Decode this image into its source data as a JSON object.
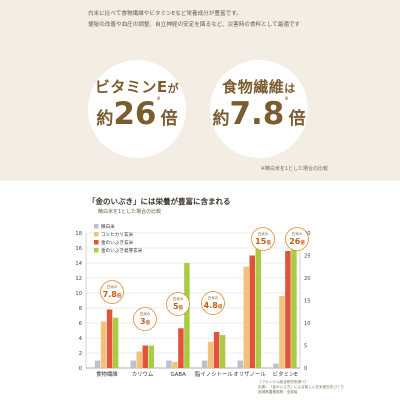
{
  "intro": {
    "line1": "白米に比べて食物繊維やビタミンEなど栄養成分が豊富です。",
    "line2": "便秘の改善や血圧の調整、自立神経の安定を図るなど、災害時の食料として最適です"
  },
  "highlights": [
    {
      "label_pre": "ビタミンE",
      "label_suf": "が",
      "prefix": "約",
      "value": "26",
      "suffix": "倍",
      "mark": "※"
    },
    {
      "label_pre": "食物繊維",
      "label_suf": "は",
      "prefix": "約",
      "value": "7.8",
      "suffix": "倍",
      "mark": "※"
    }
  ],
  "footnote": "※精白米を1とした場合の比較",
  "chart_title": "「金のいぶき」には栄養が豊富に含まれる",
  "chart_subtitle": "精白米を1とした場合の比較",
  "source": {
    "line1": "［ファンケル総合研究所調べ］",
    "line2": "出典：「金のいぶき」による新しい玄米食文化づくり",
    "line3": "宮城県農業振興・全部省"
  },
  "chart_data": {
    "type": "bar",
    "categories": [
      "食物繊維",
      "カリウム",
      "GABA",
      "脂イノシトール",
      "オリザノール",
      "ビタミンE"
    ],
    "series": [
      {
        "name": "精白米",
        "color": "#b9c3cc",
        "values": [
          1,
          1,
          1,
          1,
          1,
          1
        ]
      },
      {
        "name": "コシヒカリ玄米",
        "color": "#f2c27a",
        "values": [
          6.2,
          2.2,
          0.8,
          3.5,
          13.5,
          16
        ]
      },
      {
        "name": "金のいぶき玄米",
        "color": "#e2533c",
        "values": [
          7.8,
          3,
          5.3,
          4.8,
          15,
          26
        ]
      },
      {
        "name": "金のいぶき発芽玄米",
        "color": "#a9cc43",
        "values": [
          6.7,
          3,
          14,
          4.4,
          16.3,
          30
        ]
      }
    ],
    "ylim_left": [
      0,
      18
    ],
    "yticks_left": [
      0,
      2,
      4,
      6,
      8,
      10,
      12,
      14,
      16,
      18
    ],
    "ylim_right": [
      0,
      30
    ],
    "yticks_right": [
      0,
      5,
      10,
      15,
      20,
      25,
      30
    ],
    "right_axis_category": "ビタミンE",
    "annotations": [
      {
        "category": "食物繊維",
        "line1": "白米の",
        "value": "7.8",
        "suffix": "倍"
      },
      {
        "category": "カリウム",
        "line1": "白米の",
        "value": "3",
        "suffix": "倍"
      },
      {
        "category": "GABA",
        "line1": "白米の",
        "value": "5",
        "suffix": "倍"
      },
      {
        "category": "脂イノシトール",
        "line1": "白米の",
        "value": "4.8",
        "suffix": "倍"
      },
      {
        "category": "オリザノール",
        "line1": "白米の",
        "value": "15",
        "suffix": "倍"
      },
      {
        "category": "ビタミンE",
        "line1": "白米の",
        "value": "26",
        "suffix": "倍"
      }
    ],
    "legend_position": "top-left",
    "grid": true
  }
}
